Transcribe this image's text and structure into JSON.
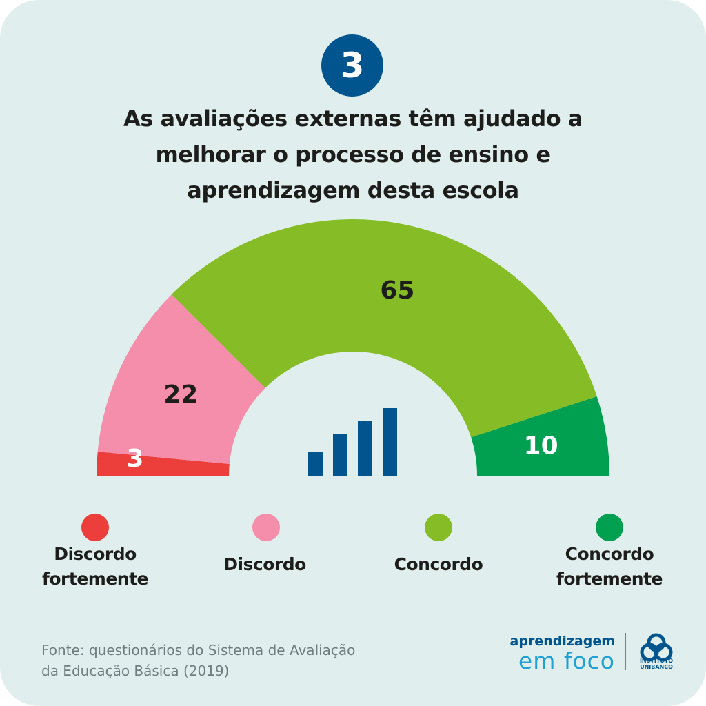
{
  "badge_number": "3",
  "title_lines": [
    "As avaliações externas têm ajudado a",
    "melhorar o processo de ensino e",
    "aprendizagem desta escola"
  ],
  "chart_data": {
    "type": "pie",
    "shape": "semicircle-donut",
    "categories": [
      "Discordo fortemente",
      "Discordo",
      "Concordo",
      "Concordo fortemente"
    ],
    "values": [
      3,
      22,
      65,
      10
    ],
    "colors": [
      "#ec3f3c",
      "#f48eab",
      "#86bc25",
      "#00a050"
    ],
    "label_colors": [
      "#ffffff",
      "#1d1d1b",
      "#1d1d1b",
      "#ffffff"
    ],
    "legend_placement": "bottom"
  },
  "legend": [
    {
      "line1": "Discordo",
      "line2": "fortemente"
    },
    {
      "line1": "Discordo",
      "line2": ""
    },
    {
      "line1": "Concordo",
      "line2": ""
    },
    {
      "line1": "Concordo",
      "line2": "fortemente"
    }
  ],
  "center_icon": "bar-chart-icon",
  "center_icon_color": "#00558f",
  "source": {
    "line1": "Fonte: questionários do Sistema de Avaliação",
    "line2": "da Educação Básica (2019)"
  },
  "logo": {
    "top": "aprendizagem",
    "bottom": "em foco",
    "brand_line1": "INSTITUTO",
    "brand_line2": "UNIBANCO"
  }
}
